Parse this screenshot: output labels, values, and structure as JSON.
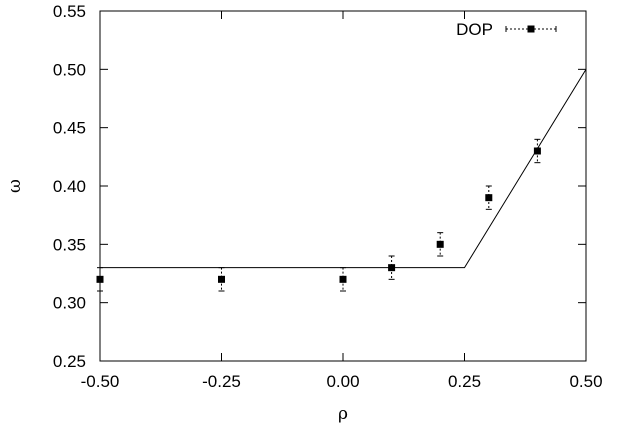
{
  "chart_data": {
    "type": "scatter",
    "xlabel": "ρ",
    "ylabel": "ω",
    "xlim": [
      -0.5,
      0.5
    ],
    "ylim": [
      0.25,
      0.55
    ],
    "grid": false,
    "legend_position": "top-right",
    "x_ticks": [
      "-0.50",
      "-0.25",
      "0.00",
      "0.25",
      "0.50"
    ],
    "y_ticks": [
      "0.25",
      "0.30",
      "0.35",
      "0.40",
      "0.45",
      "0.50",
      "0.55"
    ],
    "x_tick_values": [
      -0.5,
      -0.25,
      0.0,
      0.25,
      0.5
    ],
    "y_tick_values": [
      0.25,
      0.3,
      0.35,
      0.4,
      0.45,
      0.5,
      0.55
    ],
    "series": [
      {
        "name": "DOP",
        "kind": "points-with-errorbars",
        "color": "#000000",
        "points": [
          {
            "x": -0.5,
            "y": 0.32,
            "err": 0.01
          },
          {
            "x": -0.25,
            "y": 0.32,
            "err": 0.01
          },
          {
            "x": 0.0,
            "y": 0.32,
            "err": 0.01
          },
          {
            "x": 0.1,
            "y": 0.33,
            "err": 0.01
          },
          {
            "x": 0.2,
            "y": 0.35,
            "err": 0.01
          },
          {
            "x": 0.3,
            "y": 0.39,
            "err": 0.01
          },
          {
            "x": 0.4,
            "y": 0.43,
            "err": 0.01
          }
        ]
      },
      {
        "kind": "line",
        "color": "#000000",
        "x": [
          -0.5,
          0.25,
          0.5
        ],
        "y": [
          0.33,
          0.33,
          0.5
        ]
      }
    ]
  }
}
